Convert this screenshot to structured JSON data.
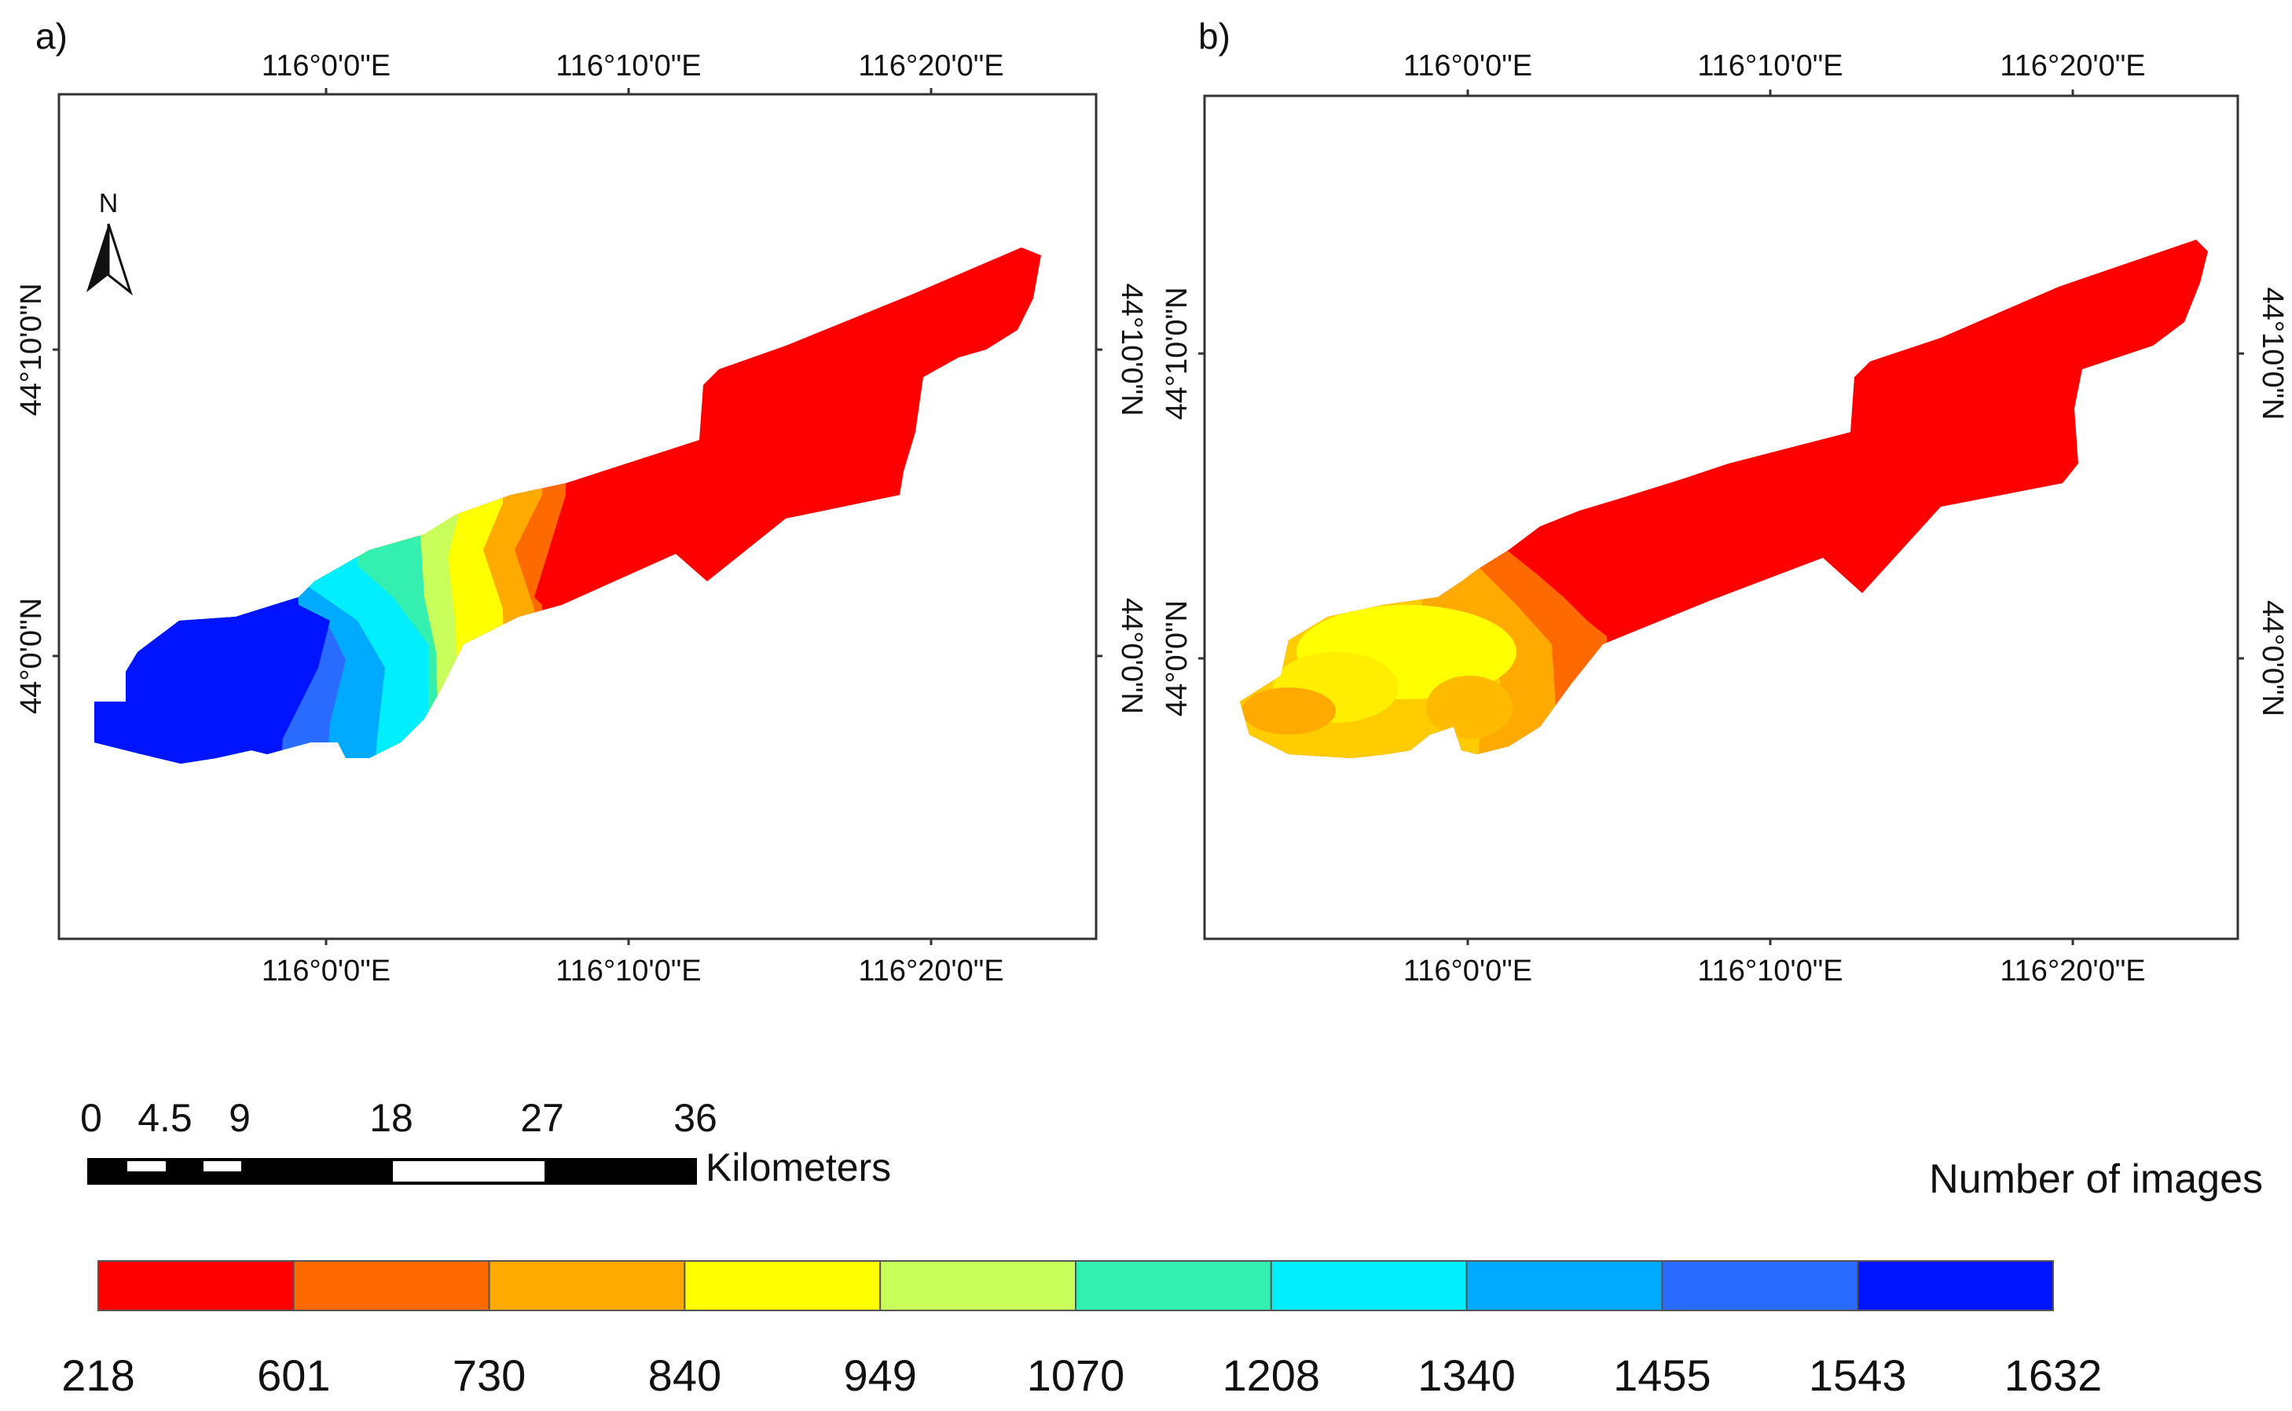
{
  "panels": [
    {
      "label": "a)",
      "lon_ticks": [
        "116°0'0\"E",
        "116°10'0\"E",
        "116°20'0\"E"
      ],
      "lat_ticks": [
        "44°10'0\"N",
        "44°0'0\"N"
      ]
    },
    {
      "label": "b)",
      "lon_ticks": [
        "116°0'0\"E",
        "116°10'0\"E",
        "116°20'0\"E"
      ],
      "lat_ticks": [
        "44°10'0\"N",
        "44°0'0\"N"
      ]
    }
  ],
  "north_arrow": {
    "label": "N"
  },
  "scale_bar": {
    "ticks": [
      "0",
      "4.5",
      "9",
      "18",
      "27",
      "36"
    ],
    "unit": "Kilometers"
  },
  "legend": {
    "title": "Number of images",
    "breaks": [
      "218",
      "601",
      "730",
      "840",
      "949",
      "1070",
      "1208",
      "1340",
      "1455",
      "1543",
      "1632"
    ],
    "colors": [
      "#ff0000",
      "#ff6a00",
      "#ffaa00",
      "#ffff00",
      "#c8ff5a",
      "#33f0b0",
      "#00eeff",
      "#00aaff",
      "#2a6bff",
      "#0014ff"
    ]
  }
}
